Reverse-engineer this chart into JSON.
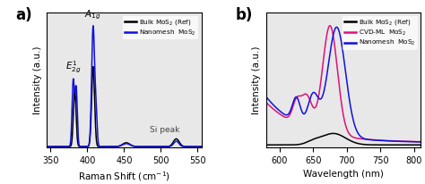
{
  "panel_a": {
    "xlim": [
      345,
      555
    ],
    "ylim": [
      0,
      1.05
    ],
    "xticks": [
      350,
      400,
      450,
      500,
      550
    ],
    "ylabel": "Intensity (a.u.)",
    "xlabel": "Raman Shift (cm$^{-1}$)",
    "label_a": "a)",
    "annotation_e": "$E^1_{2g}$",
    "annotation_a": "$A_{1g}$",
    "annotation_si": "Si peak",
    "legend_bulk": "Bulk MoS$_2$ (Ref)",
    "legend_nano": "Nanomesh  MoS$_2$",
    "color_bulk": "#000000",
    "color_nano": "#1010dd",
    "bg_color": "#e8e8e8"
  },
  "panel_b": {
    "xlim": [
      580,
      810
    ],
    "ylim": [
      0,
      1.05
    ],
    "xticks": [
      600,
      650,
      700,
      750,
      800
    ],
    "ylabel": "Intensity (a.u.)",
    "xlabel": "Wavelength (nm)",
    "label_b": "b)",
    "legend_bulk": "Bulk MoS$_2$ (Ref)",
    "legend_cvd": "CVD-ML  MoS$_2$",
    "legend_nano": "Nanomesh  MoS$_2$",
    "color_bulk": "#000000",
    "color_cvd": "#dd1177",
    "color_nano": "#1010dd",
    "bg_color": "#e8e8e8"
  }
}
